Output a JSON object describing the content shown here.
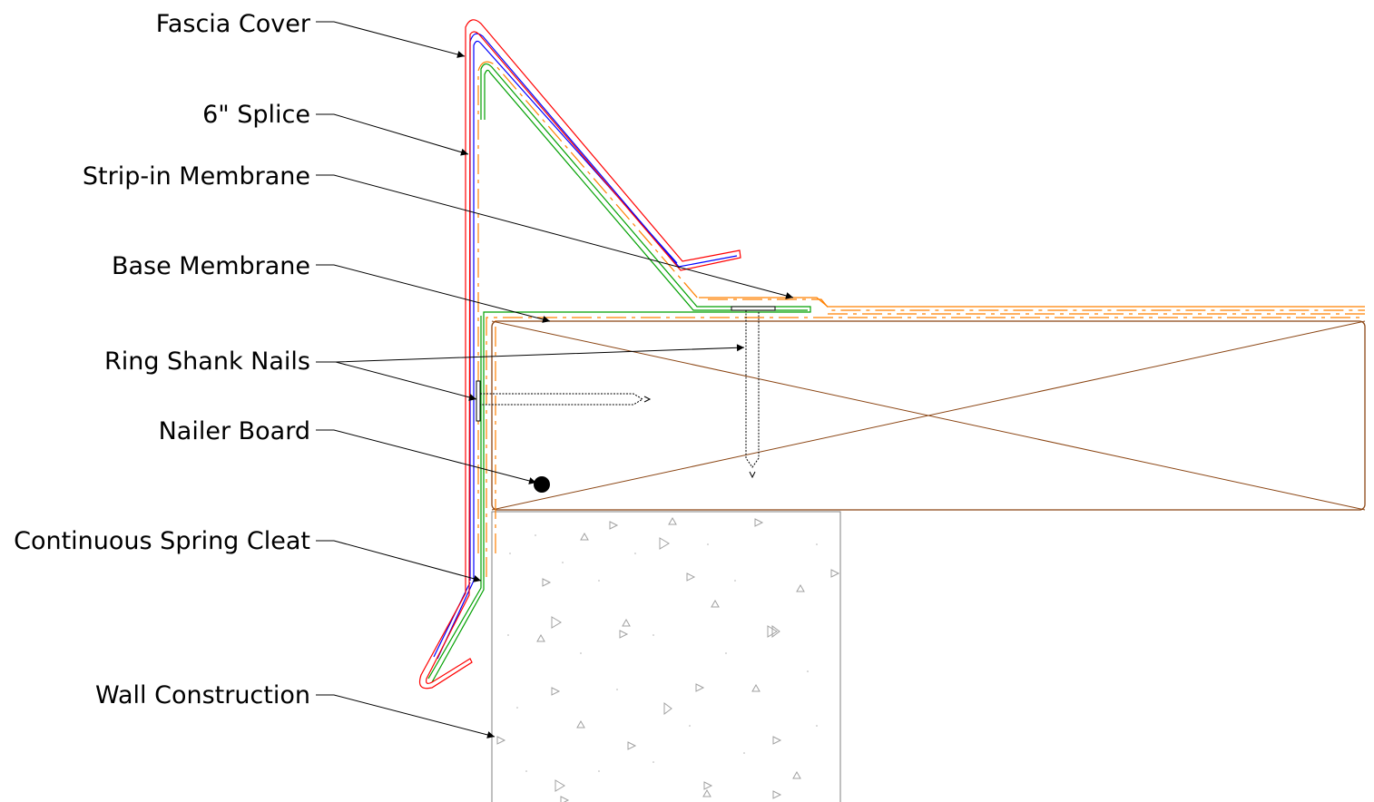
{
  "labels": {
    "fascia_cover": "Fascia Cover",
    "splice": "6\" Splice",
    "strip_in_membrane": "Strip-in Membrane",
    "base_membrane": "Base Membrane",
    "ring_shank_nails": "Ring Shank Nails",
    "nailer_board": "Nailer Board",
    "spring_cleat": "Continuous Spring Cleat",
    "wall_construction": "Wall Construction"
  },
  "colors": {
    "fascia_cover": "#ff0000",
    "splice": "#0000ff",
    "membrane": "#ff8000",
    "cleat": "#00a000",
    "nailer": "#8b4513",
    "wall": "#808080",
    "leader": "#000000"
  }
}
